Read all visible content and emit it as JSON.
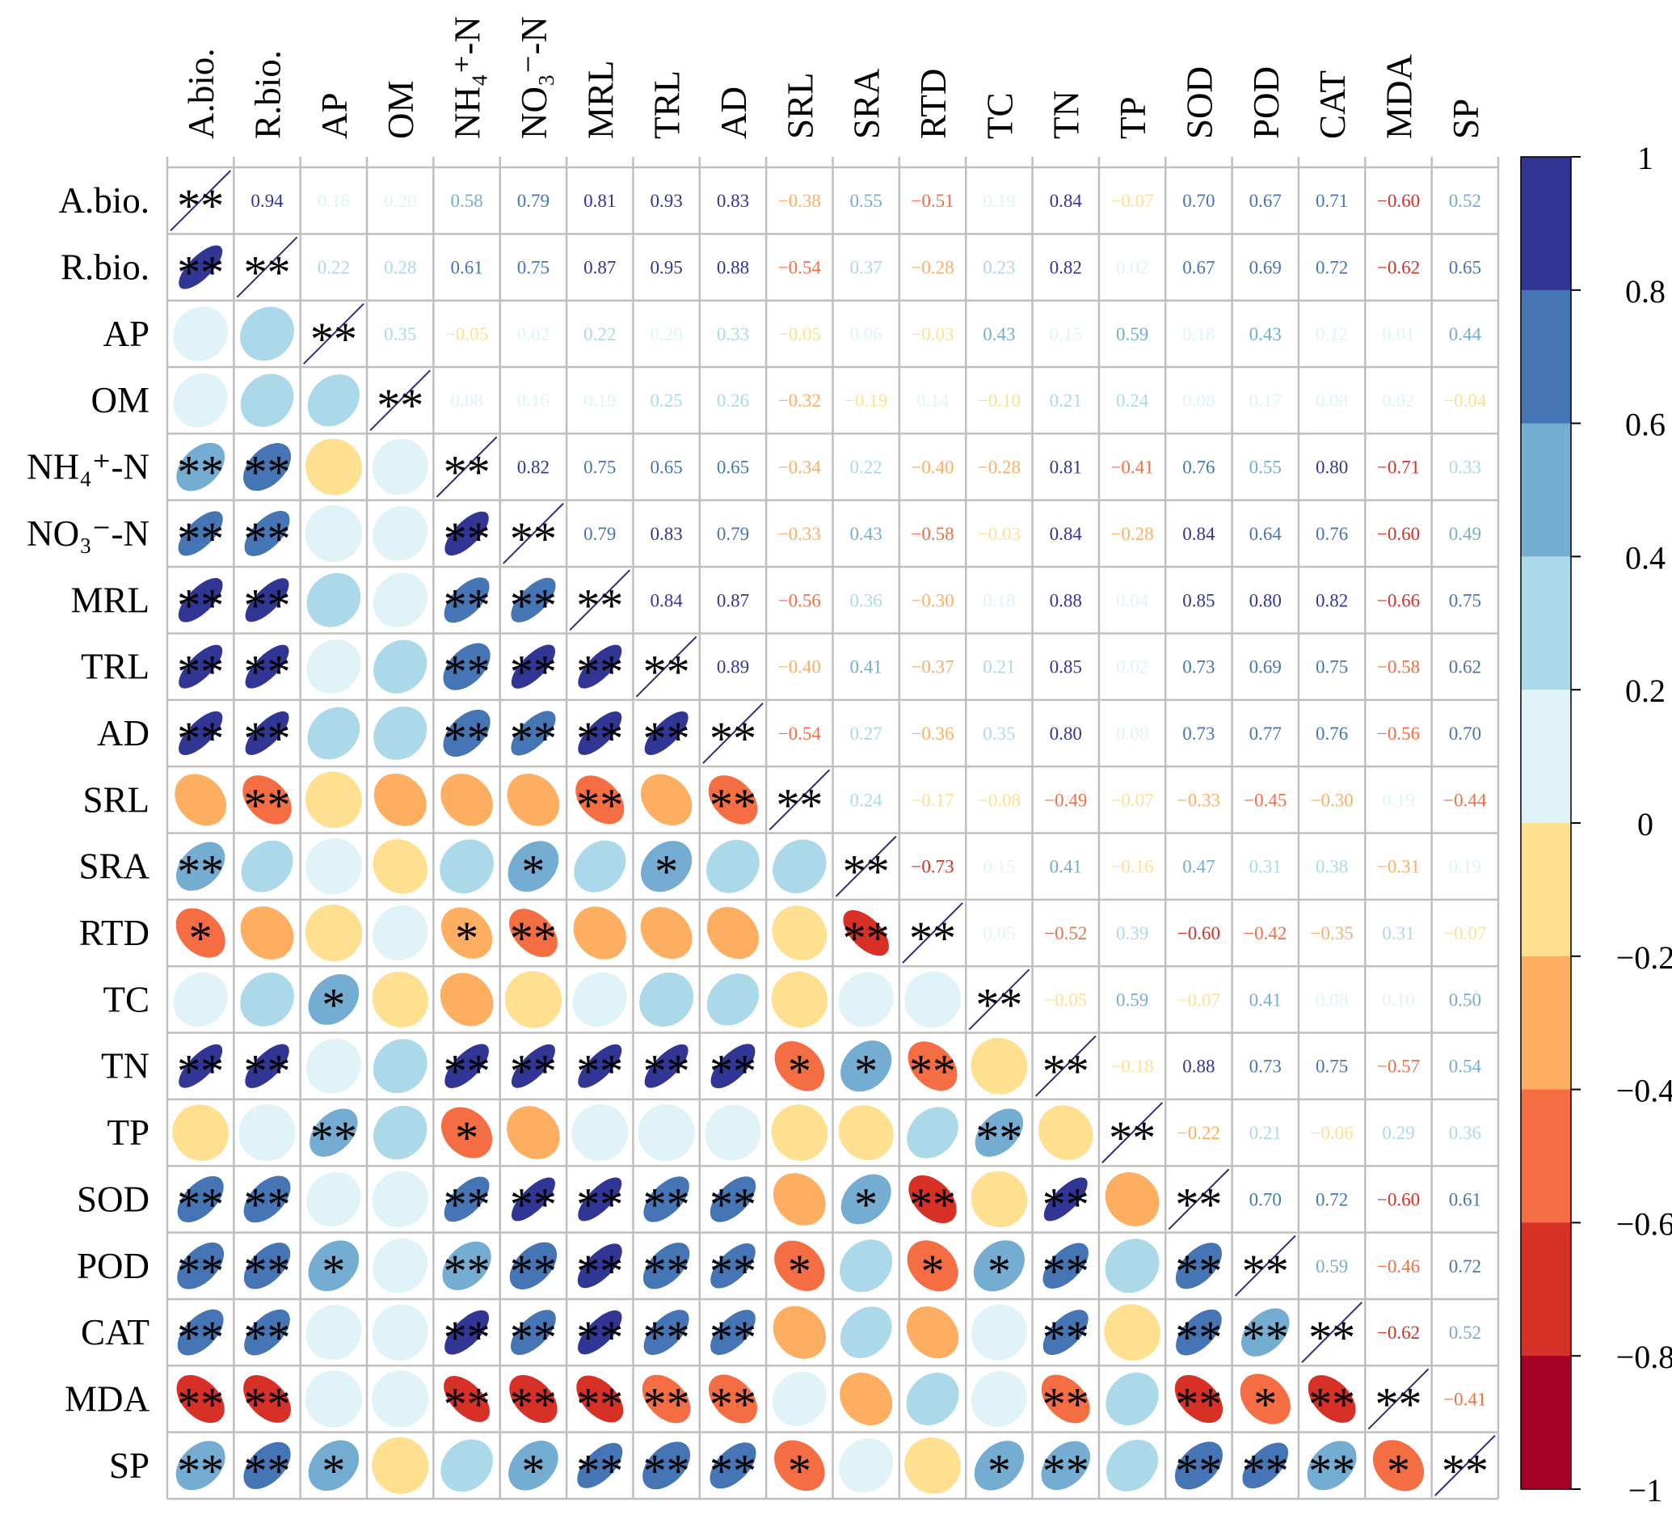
{
  "chart_data": {
    "type": "heatmap",
    "subtype": "correlation-matrix-mixed",
    "title": "",
    "description_lower": "ellipses colored by correlation with significance stars",
    "description_upper": "correlation coefficients printed as numbers",
    "variables": [
      "A.bio.",
      "R.bio.",
      "AP",
      "OM",
      "NH₄⁺-N",
      "NO₃⁻-N",
      "MRL",
      "TRL",
      "AD",
      "SRL",
      "SRA",
      "RTD",
      "TC",
      "TN",
      "TP",
      "SOD",
      "POD",
      "CAT",
      "MDA",
      "SP"
    ],
    "upper_labels": [
      [
        null,
        "0.94",
        "0.16",
        "0.20",
        "0.58",
        "0.79",
        "0.81",
        "0.93",
        "0.83",
        "−0.38",
        "0.55",
        "−0.51",
        "0.19",
        "0.84",
        "−0.07",
        "0.70",
        "0.67",
        "0.71",
        "−0.60",
        "0.52"
      ],
      [
        null,
        null,
        "0.22",
        "0.28",
        "0.61",
        "0.75",
        "0.87",
        "0.95",
        "0.88",
        "−0.54",
        "0.37",
        "−0.28",
        "0.23",
        "0.82",
        "0.02",
        "0.67",
        "0.69",
        "0.72",
        "−0.62",
        "0.65"
      ],
      [
        null,
        null,
        null,
        "0.35",
        "−0.05",
        "0.02",
        "0.22",
        "0.20",
        "0.33",
        "−0.05",
        "0.06",
        "−0.03",
        "0.43",
        "0.15",
        "0.59",
        "0.18",
        "0.43",
        "0.12",
        "0.01",
        "0.44"
      ],
      [
        null,
        null,
        null,
        null,
        "0.08",
        "0.16",
        "0.19",
        "0.25",
        "0.26",
        "−0.32",
        "−0.19",
        "0.14",
        "−0.10",
        "0.21",
        "0.24",
        "0.08",
        "0.17",
        "0.08",
        "0.02",
        "−0.04"
      ],
      [
        null,
        null,
        null,
        null,
        null,
        "0.82",
        "0.75",
        "0.65",
        "0.65",
        "−0.34",
        "0.22",
        "−0.40",
        "−0.28",
        "0.81",
        "−0.41",
        "0.76",
        "0.55",
        "0.80",
        "−0.71",
        "0.33"
      ],
      [
        null,
        null,
        null,
        null,
        null,
        null,
        "0.79",
        "0.83",
        "0.79",
        "−0.33",
        "0.43",
        "−0.58",
        "−0.03",
        "0.84",
        "−0.28",
        "0.84",
        "0.64",
        "0.76",
        "−0.60",
        "0.49"
      ],
      [
        null,
        null,
        null,
        null,
        null,
        null,
        null,
        "0.84",
        "0.87",
        "−0.56",
        "0.36",
        "−0.30",
        "0.18",
        "0.88",
        "0.04",
        "0.85",
        "0.80",
        "0.82",
        "−0.66",
        "0.75"
      ],
      [
        null,
        null,
        null,
        null,
        null,
        null,
        null,
        null,
        "0.89",
        "−0.40",
        "0.41",
        "−0.37",
        "0.21",
        "0.85",
        "0.02",
        "0.73",
        "0.69",
        "0.75",
        "−0.58",
        "0.62"
      ],
      [
        null,
        null,
        null,
        null,
        null,
        null,
        null,
        null,
        null,
        "−0.54",
        "0.27",
        "−0.36",
        "0.35",
        "0.80",
        "0.08",
        "0.73",
        "0.77",
        "0.76",
        "−0.56",
        "0.70"
      ],
      [
        null,
        null,
        null,
        null,
        null,
        null,
        null,
        null,
        null,
        null,
        "0.24",
        "−0.17",
        "−0.08",
        "−0.49",
        "−0.07",
        "−0.33",
        "−0.45",
        "−0.30",
        "0.19",
        "−0.44"
      ],
      [
        null,
        null,
        null,
        null,
        null,
        null,
        null,
        null,
        null,
        null,
        null,
        "−0.73",
        "0.15",
        "0.41",
        "−0.16",
        "0.47",
        "0.31",
        "0.38",
        "−0.31",
        "0.19"
      ],
      [
        null,
        null,
        null,
        null,
        null,
        null,
        null,
        null,
        null,
        null,
        null,
        null,
        "0.05",
        "−0.52",
        "0.39",
        "−0.60",
        "−0.42",
        "−0.35",
        "0.31",
        "−0.07"
      ],
      [
        null,
        null,
        null,
        null,
        null,
        null,
        null,
        null,
        null,
        null,
        null,
        null,
        null,
        "−0.05",
        "0.59",
        "−0.07",
        "0.41",
        "0.08",
        "0.10",
        "0.50"
      ],
      [
        null,
        null,
        null,
        null,
        null,
        null,
        null,
        null,
        null,
        null,
        null,
        null,
        null,
        null,
        "−0.18",
        "0.88",
        "0.73",
        "0.75",
        "−0.57",
        "0.54"
      ],
      [
        null,
        null,
        null,
        null,
        null,
        null,
        null,
        null,
        null,
        null,
        null,
        null,
        null,
        null,
        null,
        "−0.22",
        "0.21",
        "−0.06",
        "0.29",
        "0.36"
      ],
      [
        null,
        null,
        null,
        null,
        null,
        null,
        null,
        null,
        null,
        null,
        null,
        null,
        null,
        null,
        null,
        null,
        "0.70",
        "0.72",
        "−0.60",
        "0.61"
      ],
      [
        null,
        null,
        null,
        null,
        null,
        null,
        null,
        null,
        null,
        null,
        null,
        null,
        null,
        null,
        null,
        null,
        null,
        "0.59",
        "−0.46",
        "0.72"
      ],
      [
        null,
        null,
        null,
        null,
        null,
        null,
        null,
        null,
        null,
        null,
        null,
        null,
        null,
        null,
        null,
        null,
        null,
        null,
        "−0.62",
        "0.52"
      ],
      [
        null,
        null,
        null,
        null,
        null,
        null,
        null,
        null,
        null,
        null,
        null,
        null,
        null,
        null,
        null,
        null,
        null,
        null,
        null,
        "−0.41"
      ],
      [
        null,
        null,
        null,
        null,
        null,
        null,
        null,
        null,
        null,
        null,
        null,
        null,
        null,
        null,
        null,
        null,
        null,
        null,
        null,
        null
      ]
    ],
    "stars_lower": [
      [
        "**"
      ],
      [
        "**",
        "**"
      ],
      [
        "",
        "",
        "**"
      ],
      [
        "",
        "",
        "",
        "**"
      ],
      [
        "**",
        "**",
        "",
        "",
        "**"
      ],
      [
        "**",
        "**",
        "",
        "",
        "**",
        "**"
      ],
      [
        "**",
        "**",
        "",
        "",
        "**",
        "**",
        "**"
      ],
      [
        "**",
        "**",
        "",
        "",
        "**",
        "**",
        "**",
        "**"
      ],
      [
        "**",
        "**",
        "",
        "",
        "**",
        "**",
        "**",
        "**",
        "**"
      ],
      [
        "",
        "**",
        "",
        "",
        "",
        "",
        "**",
        "",
        "**",
        "**"
      ],
      [
        "**",
        "",
        "",
        "",
        "",
        "*",
        "",
        "*",
        "",
        "",
        "**"
      ],
      [
        "*",
        "",
        "",
        "",
        "*",
        "**",
        "",
        "",
        "",
        "",
        "**",
        "**"
      ],
      [
        "",
        "",
        "*",
        "",
        "",
        "",
        "",
        "",
        "",
        "",
        "",
        "",
        "**"
      ],
      [
        "**",
        "**",
        "",
        "",
        "**",
        "**",
        "**",
        "**",
        "**",
        "*",
        "*",
        "**",
        "",
        "**"
      ],
      [
        "",
        "",
        "**",
        "",
        "*",
        "",
        "",
        "",
        "",
        "",
        "",
        "",
        "**",
        "",
        "**"
      ],
      [
        "**",
        "**",
        "",
        "",
        "**",
        "**",
        "**",
        "**",
        "**",
        "",
        "*",
        "**",
        "",
        "**",
        "",
        "**"
      ],
      [
        "**",
        "**",
        "*",
        "",
        "**",
        "**",
        "**",
        "**",
        "**",
        "*",
        "",
        "*",
        "*",
        "**",
        "",
        "**",
        "**"
      ],
      [
        "**",
        "**",
        "",
        "",
        "**",
        "**",
        "**",
        "**",
        "**",
        "",
        "",
        "",
        "",
        "**",
        "",
        "**",
        "**",
        "**"
      ],
      [
        "**",
        "**",
        "",
        "",
        "**",
        "**",
        "**",
        "**",
        "**",
        "",
        "",
        "",
        "",
        "**",
        "",
        "**",
        "*",
        "**",
        "**"
      ],
      [
        "**",
        "**",
        "*",
        "",
        "",
        "*",
        "**",
        "**",
        "**",
        "*",
        "",
        "",
        "*",
        "**",
        "",
        "**",
        "**",
        "**",
        "*",
        "**"
      ]
    ],
    "colorbar": {
      "range": [
        -1,
        1
      ],
      "ticks": [
        "1",
        "0.8",
        "0.6",
        "0.4",
        "0.2",
        "0",
        "−0.2",
        "−0.4",
        "−0.6",
        "−0.8",
        "−1"
      ],
      "colors_top_to_bottom": [
        "#313695",
        "#4575b4",
        "#74add1",
        "#abd9e9",
        "#e0f3f8",
        "#fee090",
        "#fdae61",
        "#f46d43",
        "#d73027",
        "#a50026"
      ]
    },
    "grid_color": "#bfbfbf",
    "diagonal_line_color": "#2b2f7e"
  }
}
